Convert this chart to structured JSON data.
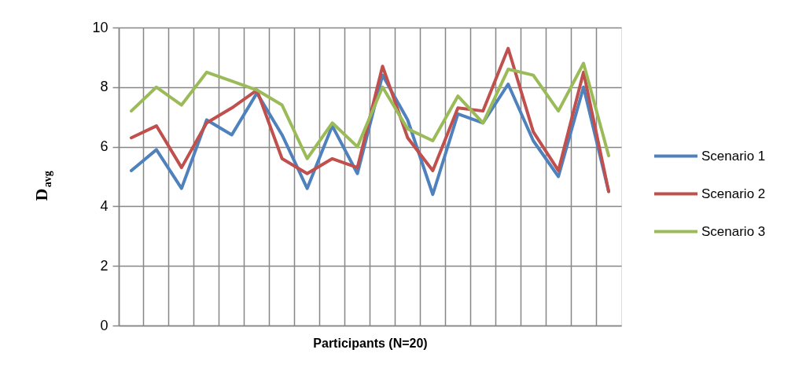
{
  "chart_data": {
    "type": "line",
    "categories": [
      null,
      null,
      null,
      null,
      null,
      null,
      null,
      null,
      null,
      null,
      null,
      null,
      null,
      null,
      null,
      null,
      null,
      null,
      null,
      null
    ],
    "series": [
      {
        "name": "Scenario 1",
        "color": "#4f81bd",
        "values": [
          5.2,
          5.9,
          4.6,
          6.9,
          6.4,
          7.8,
          6.4,
          4.6,
          6.7,
          5.1,
          8.4,
          6.9,
          4.4,
          7.1,
          6.8,
          8.1,
          6.2,
          5.0,
          8.0,
          4.5
        ]
      },
      {
        "name": "Scenario 2",
        "color": "#c0504d",
        "values": [
          6.3,
          6.7,
          5.3,
          6.8,
          7.3,
          7.9,
          5.6,
          5.1,
          5.6,
          5.3,
          8.7,
          6.3,
          5.2,
          7.3,
          7.2,
          9.3,
          6.5,
          5.2,
          8.5,
          4.5
        ]
      },
      {
        "name": "Scenario 3",
        "color": "#9bbb59",
        "values": [
          7.2,
          8.0,
          7.4,
          8.5,
          8.2,
          7.9,
          7.4,
          5.6,
          6.8,
          6.0,
          8.0,
          6.6,
          6.2,
          7.7,
          6.8,
          8.6,
          8.4,
          7.2,
          8.8,
          5.7
        ]
      }
    ],
    "xlabel": "Participants (N=20)",
    "ylabel": "D$_{avg}$",
    "ylim": [
      0,
      10
    ],
    "yticks": [
      0,
      2,
      4,
      6,
      8,
      10
    ],
    "grid": true,
    "legend": "right",
    "tick_labels": "y",
    "line_style": "solid"
  }
}
